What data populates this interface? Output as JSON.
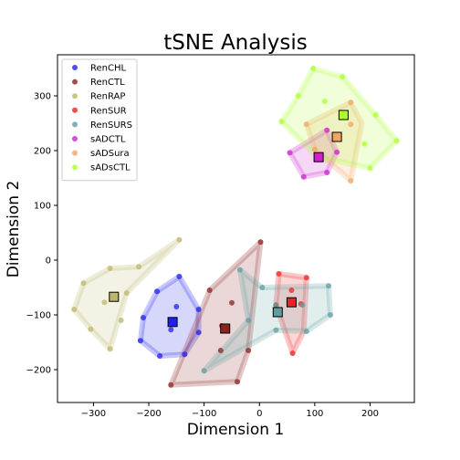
{
  "chart_data": {
    "type": "scatter",
    "title": "tSNE Analysis",
    "xlabel": "Dimension 1",
    "ylabel": "Dimension 2",
    "xlim": [
      -365,
      280
    ],
    "ylim": [
      -260,
      375
    ],
    "xticks": [
      -300,
      -200,
      -100,
      0,
      100,
      200
    ],
    "yticks": [
      -200,
      -100,
      0,
      100,
      200,
      300
    ],
    "tick_labels_x": [
      "−300",
      "−200",
      "−100",
      "0",
      "100",
      "200"
    ],
    "tick_labels_y": [
      "−200",
      "−100",
      "0",
      "100",
      "200",
      "300"
    ],
    "grid": false,
    "legend_position": "top-left",
    "series": [
      {
        "name": "RenCHL",
        "color": "#2020ee",
        "points": [
          [
            -145,
            -30
          ],
          [
            -185,
            -57
          ],
          [
            -210,
            -105
          ],
          [
            -150,
            -85
          ],
          [
            -160,
            -127
          ],
          [
            -215,
            -147
          ],
          [
            -180,
            -175
          ],
          [
            -135,
            -172
          ],
          [
            -110,
            -90
          ],
          [
            -110,
            -132
          ]
        ],
        "centroid": [
          -157,
          -113
        ],
        "hull": [
          [
            -145,
            -30
          ],
          [
            -185,
            -57
          ],
          [
            -210,
            -105
          ],
          [
            -215,
            -147
          ],
          [
            -180,
            -175
          ],
          [
            -135,
            -172
          ],
          [
            -110,
            -132
          ],
          [
            -110,
            -90
          ]
        ]
      },
      {
        "name": "RenCTL",
        "color": "#8b2323",
        "points": [
          [
            2,
            33
          ],
          [
            -90,
            -55
          ],
          [
            -50,
            -78
          ],
          [
            -68,
            -120
          ],
          [
            -70,
            -165
          ],
          [
            -20,
            -165
          ],
          [
            -40,
            -222
          ],
          [
            -160,
            -228
          ]
        ],
        "centroid": [
          -62,
          -125
        ],
        "hull": [
          [
            2,
            33
          ],
          [
            -90,
            -55
          ],
          [
            -160,
            -228
          ],
          [
            -40,
            -222
          ],
          [
            -20,
            -165
          ]
        ]
      },
      {
        "name": "RenRAP",
        "color": "#bdb76b",
        "points": [
          [
            -145,
            37
          ],
          [
            -218,
            -12
          ],
          [
            -270,
            -15
          ],
          [
            -318,
            -42
          ],
          [
            -240,
            -60
          ],
          [
            -280,
            -77
          ],
          [
            -335,
            -90
          ],
          [
            -250,
            -110
          ],
          [
            -305,
            -126
          ],
          [
            -270,
            -162
          ]
        ],
        "centroid": [
          -263,
          -67
        ],
        "hull": [
          [
            -145,
            37
          ],
          [
            -218,
            -12
          ],
          [
            -270,
            -15
          ],
          [
            -318,
            -42
          ],
          [
            -335,
            -90
          ],
          [
            -305,
            -126
          ],
          [
            -270,
            -162
          ],
          [
            -240,
            -60
          ]
        ]
      },
      {
        "name": "RenSUR",
        "color": "#ee2222",
        "points": [
          [
            35,
            -25
          ],
          [
            85,
            -32
          ],
          [
            58,
            -55
          ],
          [
            30,
            -82
          ],
          [
            75,
            -80
          ],
          [
            60,
            -170
          ]
        ],
        "centroid": [
          58,
          -77
        ],
        "hull": [
          [
            35,
            -25
          ],
          [
            85,
            -32
          ],
          [
            80,
            -130
          ],
          [
            60,
            -170
          ],
          [
            30,
            -82
          ]
        ]
      },
      {
        "name": "RenSURS",
        "color": "#5f9ea0",
        "points": [
          [
            -35,
            -18
          ],
          [
            5,
            -50
          ],
          [
            30,
            -82
          ],
          [
            78,
            -82
          ],
          [
            125,
            -47
          ],
          [
            128,
            -100
          ],
          [
            85,
            -130
          ],
          [
            -20,
            -110
          ],
          [
            30,
            -128
          ],
          [
            -100,
            -202
          ]
        ],
        "centroid": [
          33,
          -95
        ],
        "hull": [
          [
            -35,
            -18
          ],
          [
            5,
            -50
          ],
          [
            125,
            -47
          ],
          [
            128,
            -100
          ],
          [
            85,
            -130
          ],
          [
            30,
            -128
          ],
          [
            -100,
            -202
          ],
          [
            -20,
            -110
          ]
        ]
      },
      {
        "name": "sADCTL",
        "color": "#cc22cc",
        "points": [
          [
            122,
            237
          ],
          [
            105,
            188
          ],
          [
            55,
            196
          ],
          [
            80,
            152
          ],
          [
            140,
            197
          ],
          [
            122,
            160
          ]
        ],
        "centroid": [
          107,
          188
        ],
        "hull": [
          [
            122,
            237
          ],
          [
            140,
            197
          ],
          [
            122,
            160
          ],
          [
            80,
            152
          ],
          [
            55,
            196
          ]
        ]
      },
      {
        "name": "sADSura",
        "color": "#f4a460",
        "points": [
          [
            85,
            248
          ],
          [
            165,
            288
          ],
          [
            165,
            248
          ],
          [
            100,
            202
          ],
          [
            165,
            145
          ]
        ],
        "centroid": [
          140,
          225
        ],
        "hull": [
          [
            85,
            248
          ],
          [
            165,
            288
          ],
          [
            185,
            250
          ],
          [
            165,
            145
          ],
          [
            100,
            202
          ]
        ]
      },
      {
        "name": "sADsCTL",
        "color": "#adff2f",
        "points": [
          [
            97,
            350
          ],
          [
            70,
            300
          ],
          [
            40,
            253
          ],
          [
            118,
            290
          ],
          [
            150,
            335
          ],
          [
            210,
            265
          ],
          [
            248,
            218
          ],
          [
            190,
            212
          ],
          [
            200,
            168
          ],
          [
            105,
            188
          ]
        ],
        "centroid": [
          152,
          265
        ],
        "hull": [
          [
            97,
            350
          ],
          [
            150,
            335
          ],
          [
            210,
            265
          ],
          [
            248,
            218
          ],
          [
            200,
            168
          ],
          [
            105,
            188
          ],
          [
            40,
            253
          ],
          [
            70,
            300
          ]
        ]
      }
    ]
  }
}
